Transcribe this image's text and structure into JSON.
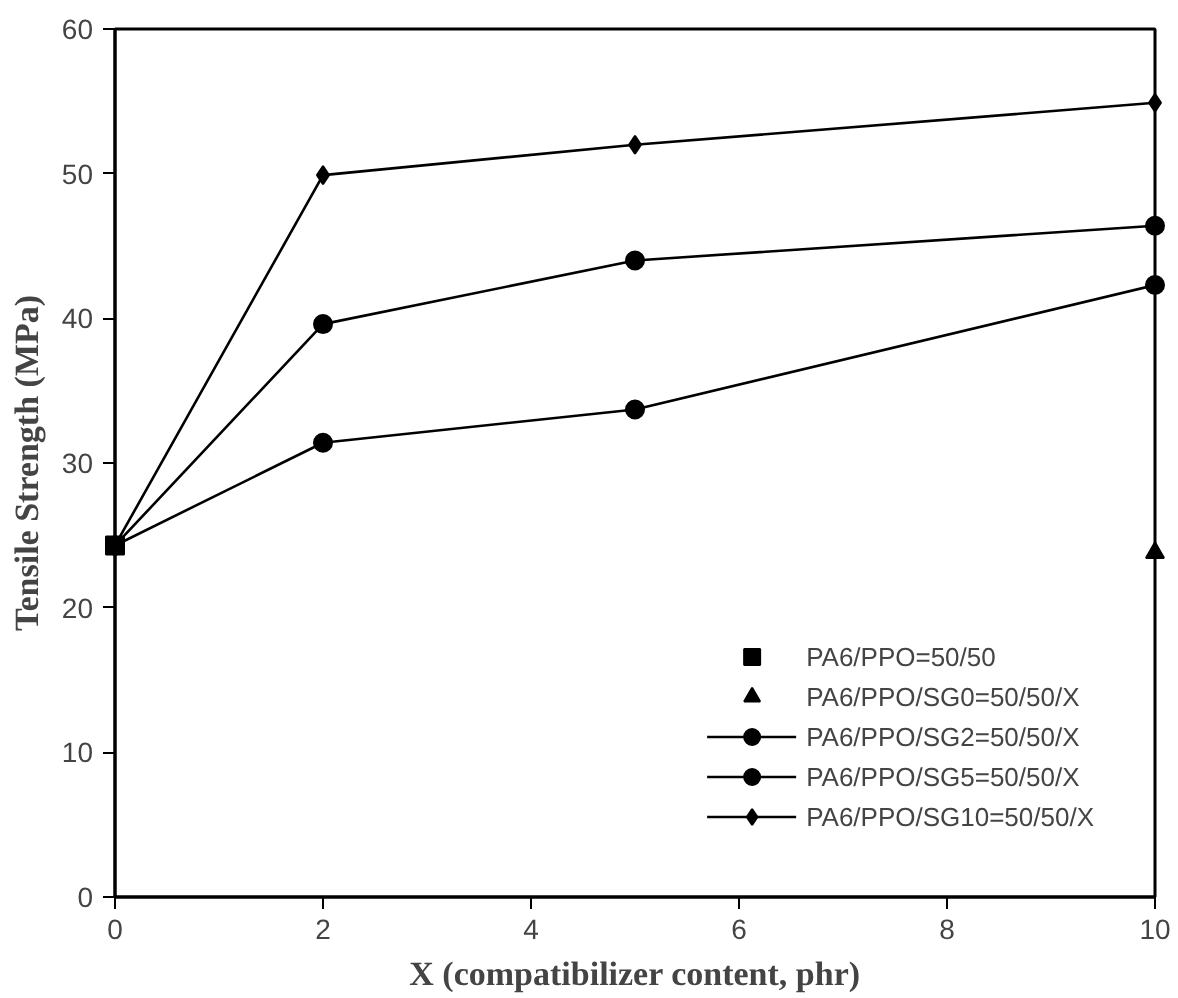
{
  "chart_data": {
    "type": "line",
    "xlabel": "X (compatibilizer content, phr)",
    "ylabel": "Tensile Strength (MPa)",
    "xlim": [
      0,
      10
    ],
    "ylim": [
      0,
      60
    ],
    "xticks": [
      0,
      2,
      4,
      6,
      8,
      10
    ],
    "yticks": [
      0,
      10,
      20,
      30,
      40,
      50,
      60
    ],
    "grid": false,
    "legend": "bottom right",
    "series": [
      {
        "name": "PA6/PPO=50/50",
        "color": "#000000",
        "type": "scatter",
        "marker": "square",
        "x": [
          0
        ],
        "values": [
          24.3
        ]
      },
      {
        "name": "PA6/PPO/SG0=50/50/X",
        "color": "#000000",
        "type": "scatter",
        "marker": "triangle",
        "x": [
          10
        ],
        "values": [
          23.8
        ]
      },
      {
        "name": "PA6/PPO/SG2=50/50/X",
        "color": "#000000",
        "marker": "circle",
        "x": [
          0,
          2,
          5,
          10
        ],
        "values": [
          24.3,
          31.4,
          33.7,
          42.3
        ]
      },
      {
        "name": "PA6/PPO/SG5=50/50/X",
        "color": "#000000",
        "marker": "circle",
        "x": [
          0,
          2,
          5,
          10
        ],
        "values": [
          24.3,
          39.6,
          44.0,
          46.4
        ]
      },
      {
        "name": "PA6/PPO/SG10=50/50/X",
        "color": "#000000",
        "marker": "diamond",
        "x": [
          0,
          2,
          5,
          10
        ],
        "values": [
          24.3,
          49.9,
          52.0,
          54.9
        ]
      }
    ]
  }
}
